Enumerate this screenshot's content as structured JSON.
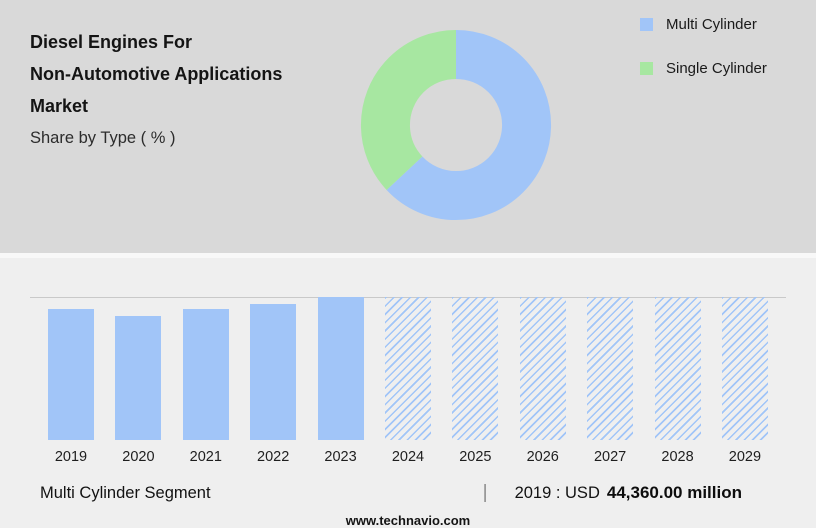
{
  "header": {
    "title_line1": "Diesel Engines For",
    "title_line2": "Non-Automotive Applications",
    "title_line3": "Market",
    "subtitle": "Share by Type ( % )"
  },
  "chart_data": [
    {
      "type": "pie",
      "title": "Share by Type ( % )",
      "labels": [
        "Multi Cylinder",
        "Single Cylinder"
      ],
      "values": [
        63,
        37
      ],
      "colors": [
        "#A1C5F8",
        "#A7E7A1"
      ],
      "donut": true,
      "inner_radius_ratio": 0.48,
      "legend_position": "right"
    },
    {
      "type": "bar",
      "title": "Multi Cylinder Segment",
      "categories": [
        "2019",
        "2020",
        "2021",
        "2022",
        "2023",
        "2024",
        "2025",
        "2026",
        "2027",
        "2028",
        "2029"
      ],
      "values": [
        44360,
        42200,
        44500,
        46200,
        48500,
        null,
        null,
        null,
        null,
        null,
        null
      ],
      "forecast": [
        false,
        false,
        false,
        false,
        false,
        true,
        true,
        true,
        true,
        true,
        true
      ],
      "unit": "USD million",
      "bar_color": "#A1C5F8",
      "forecast_style": "diagonal-hatch",
      "xlabel": "",
      "ylabel": "",
      "grid": false
    }
  ],
  "footnote": {
    "segment_label": "Multi Cylinder Segment",
    "separator": "|",
    "stat_prefix": "2019 : USD",
    "stat_value": "44,360.00 million"
  },
  "footer": {
    "website": "www.technavio.com"
  }
}
